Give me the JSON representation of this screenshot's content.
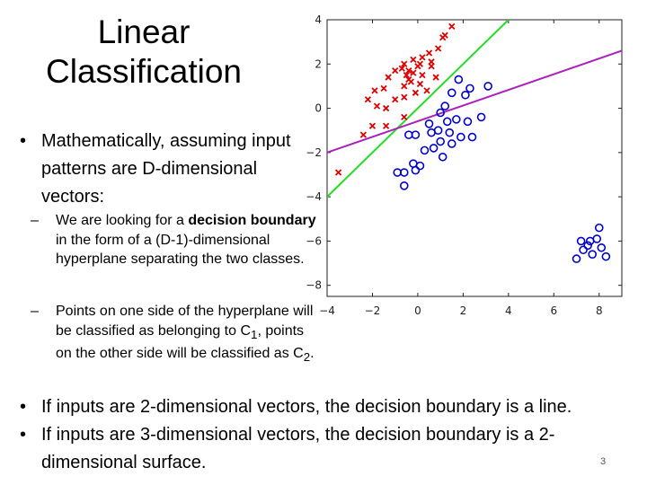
{
  "slide": {
    "title_line1": "Linear",
    "title_line2": "Classification",
    "bullet1": "Mathematically, assuming input patterns are D-dimensional vectors:",
    "sub1_pre": "We are looking for a ",
    "sub1_bold": "decision boundary",
    "sub1_post": " in the form of a (D-1)-dimensional hyperplane separating the two classes.",
    "sub2_pre": "Points on one side of the hyperplane will be classified as belonging to C",
    "sub2_sub1": "1",
    "sub2_mid": ", points on the other side will be classified as C",
    "sub2_sub2": "2",
    "sub2_end": ".",
    "bullet2": "If inputs are 2-dimensional vectors, the decision boundary is a line.",
    "bullet3": "If inputs are 3-dimensional vectors, the decision boundary is a 2-dimensional surface.",
    "page_number": "3",
    "bullet_glyph": "•",
    "dash_glyph": "–"
  },
  "colors": {
    "class_x": "#dd0000",
    "class_o": "#0000cc",
    "line_green": "#22dd22",
    "line_purple": "#aa22bb"
  },
  "chart_data": {
    "type": "scatter",
    "xlim": [
      -4,
      9
    ],
    "ylim": [
      -8.5,
      4
    ],
    "xticks": [
      -4,
      -2,
      0,
      2,
      4,
      6,
      8
    ],
    "yticks": [
      4,
      2,
      0,
      -2,
      -4,
      -6,
      -8
    ],
    "xtick_labels": [
      "−4",
      "−2",
      "0",
      "2",
      "4",
      "6",
      "8"
    ],
    "ytick_labels": [
      "4",
      "2",
      "0",
      "−2",
      "−4",
      "−6",
      "−8"
    ],
    "series": [
      {
        "marker": "x",
        "color": "#dd0000",
        "points": [
          [
            1.1,
            3.2
          ],
          [
            1.2,
            3.3
          ],
          [
            1.5,
            3.7
          ],
          [
            0.9,
            2.7
          ],
          [
            0.5,
            2.5
          ],
          [
            0.2,
            2.3
          ],
          [
            0.6,
            2.1
          ],
          [
            -0.6,
            2.0
          ],
          [
            0.0,
            1.9
          ],
          [
            -0.2,
            2.2
          ],
          [
            -1.0,
            1.7
          ],
          [
            -0.5,
            1.5
          ],
          [
            -0.7,
            1.8
          ],
          [
            0.2,
            1.5
          ],
          [
            0.8,
            1.4
          ],
          [
            -0.3,
            1.2
          ],
          [
            -0.6,
            1.0
          ],
          [
            -1.3,
            1.4
          ],
          [
            -1.5,
            0.9
          ],
          [
            -2.2,
            0.4
          ],
          [
            -1.8,
            0.1
          ],
          [
            -1.4,
            0.0
          ],
          [
            -1.0,
            0.4
          ],
          [
            -0.6,
            0.5
          ],
          [
            -0.1,
            0.7
          ],
          [
            0.4,
            0.8
          ],
          [
            -0.4,
            1.3
          ],
          [
            -1.9,
            0.8
          ],
          [
            -3.5,
            -2.9
          ],
          [
            -2.4,
            -1.2
          ],
          [
            -0.4,
            1.7
          ],
          [
            0.1,
            2.0
          ],
          [
            -0.2,
            1.6
          ],
          [
            -0.6,
            -0.4
          ],
          [
            -2.0,
            -0.8
          ],
          [
            -1.4,
            -0.8
          ],
          [
            0.6,
            1.9
          ],
          [
            0.1,
            1.1
          ]
        ]
      },
      {
        "marker": "o",
        "color": "#0000cc",
        "points": [
          [
            1.8,
            1.3
          ],
          [
            2.3,
            0.9
          ],
          [
            3.1,
            1.0
          ],
          [
            2.1,
            0.6
          ],
          [
            1.5,
            0.7
          ],
          [
            1.2,
            0.1
          ],
          [
            1.0,
            -0.2
          ],
          [
            1.3,
            -0.6
          ],
          [
            1.7,
            -0.5
          ],
          [
            1.4,
            -1.1
          ],
          [
            1.9,
            -1.3
          ],
          [
            2.2,
            -0.6
          ],
          [
            2.8,
            -0.4
          ],
          [
            2.4,
            -1.3
          ],
          [
            0.5,
            -0.7
          ],
          [
            1.0,
            -1.5
          ],
          [
            0.7,
            -1.8
          ],
          [
            1.1,
            -2.2
          ],
          [
            0.3,
            -1.9
          ],
          [
            -0.1,
            -1.2
          ],
          [
            0.6,
            -1.1
          ],
          [
            -0.4,
            -1.2
          ],
          [
            -0.2,
            -2.5
          ],
          [
            -0.6,
            -2.9
          ],
          [
            -0.1,
            -2.8
          ],
          [
            0.1,
            -2.6
          ],
          [
            -0.9,
            -2.9
          ],
          [
            -0.6,
            -3.5
          ],
          [
            0.9,
            -1.0
          ],
          [
            1.5,
            -1.6
          ],
          [
            7.0,
            -6.8
          ],
          [
            7.2,
            -6.0
          ],
          [
            7.5,
            -6.2
          ],
          [
            7.7,
            -6.6
          ],
          [
            7.9,
            -5.9
          ],
          [
            8.1,
            -6.3
          ],
          [
            8.0,
            -5.4
          ],
          [
            7.3,
            -6.4
          ],
          [
            7.6,
            -6.0
          ],
          [
            8.3,
            -6.7
          ]
        ]
      }
    ],
    "lines": [
      {
        "color": "#22dd22",
        "from": [
          -4.0,
          -4.0
        ],
        "to": [
          4.0,
          4.0
        ]
      },
      {
        "color": "#aa22bb",
        "from": [
          -4.0,
          -2.0
        ],
        "to": [
          9.0,
          2.6
        ]
      }
    ]
  }
}
